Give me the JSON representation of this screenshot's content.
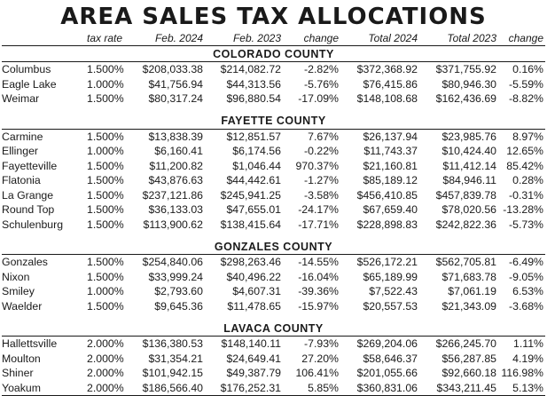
{
  "title": "AREA SALES TAX ALLOCATIONS",
  "headers": [
    "",
    "tax rate",
    "Feb. 2024",
    "Feb. 2023",
    "change",
    "Total 2024",
    "Total 2023",
    "change"
  ],
  "counties": [
    {
      "name": "COLORADO COUNTY",
      "rows": [
        [
          "Columbus",
          "1.500%",
          "$208,033.38",
          "$214,082.72",
          "-2.82%",
          "$372,368.92",
          "$371,755.92",
          "0.16%"
        ],
        [
          "Eagle Lake",
          "1.000%",
          "$41,756.94",
          "$44,313.56",
          "-5.76%",
          "$76,415.86",
          "$80,946.30",
          "-5.59%"
        ],
        [
          "Weimar",
          "1.500%",
          "$80,317.24",
          "$96,880.54",
          "-17.09%",
          "$148,108.68",
          "$162,436.69",
          "-8.82%"
        ]
      ]
    },
    {
      "name": "FAYETTE COUNTY",
      "rows": [
        [
          "Carmine",
          "1.500%",
          "$13,838.39",
          "$12,851.57",
          "7.67%",
          "$26,137.94",
          "$23,985.76",
          "8.97%"
        ],
        [
          "Ellinger",
          "1.000%",
          "$6,160.41",
          "$6,174.56",
          "-0.22%",
          "$11,743.37",
          "$10,424.40",
          "12.65%"
        ],
        [
          "Fayetteville",
          "1.500%",
          "$11,200.82",
          "$1,046.44",
          "970.37%",
          "$21,160.81",
          "$11,412.14",
          "85.42%"
        ],
        [
          "Flatonia",
          "1.500%",
          "$43,876.63",
          "$44,442.61",
          "-1.27%",
          "$85,189.12",
          "$84,946.11",
          "0.28%"
        ],
        [
          "La Grange",
          "1.500%",
          "$237,121.86",
          "$245,941.25",
          "-3.58%",
          "$456,410.85",
          "$457,839.78",
          "-0.31%"
        ],
        [
          "Round Top",
          "1.500%",
          "$36,133.03",
          "$47,655.01",
          "-24.17%",
          "$67,659.40",
          "$78,020.56",
          "-13.28%"
        ],
        [
          "Schulenburg",
          "1.500%",
          "$113,900.62",
          "$138,415.64",
          "-17.71%",
          "$228,898.83",
          "$242,822.36",
          "-5.73%"
        ]
      ]
    },
    {
      "name": "GONZALES COUNTY",
      "rows": [
        [
          "Gonzales",
          "1.500%",
          "$254,840.06",
          "$298,263.46",
          "-14.55%",
          "$526,172.21",
          "$562,705.81",
          "-6.49%"
        ],
        [
          "Nixon",
          "1.500%",
          "$33,999.24",
          "$40,496.22",
          "-16.04%",
          "$65,189.99",
          "$71,683.78",
          "-9.05%"
        ],
        [
          "Smiley",
          "1.000%",
          "$2,793.60",
          "$4,607.31",
          "-39.36%",
          "$7,522.43",
          "$7,061.19",
          "6.53%"
        ],
        [
          "Waelder",
          "1.500%",
          "$9,645.36",
          "$11,478.65",
          "-15.97%",
          "$20,557.53",
          "$21,343.09",
          "-3.68%"
        ]
      ]
    },
    {
      "name": "LAVACA COUNTY",
      "rows": [
        [
          "Hallettsville",
          "2.000%",
          "$136,380.53",
          "$148,140.11",
          "-7.93%",
          "$269,204.06",
          "$266,245.70",
          "1.11%"
        ],
        [
          "Moulton",
          "2.000%",
          "$31,354.21",
          "$24,649.41",
          "27.20%",
          "$58,646.37",
          "$56,287.85",
          "4.19%"
        ],
        [
          "Shiner",
          "2.000%",
          "$101,942.15",
          "$49,387.79",
          "106.41%",
          "$201,055.66",
          "$92,660.18",
          "116.98%"
        ],
        [
          "Yoakum",
          "2.000%",
          "$186,566.40",
          "$176,252.31",
          "5.85%",
          "$360,831.06",
          "$343,211.45",
          "5.13%"
        ]
      ]
    }
  ]
}
